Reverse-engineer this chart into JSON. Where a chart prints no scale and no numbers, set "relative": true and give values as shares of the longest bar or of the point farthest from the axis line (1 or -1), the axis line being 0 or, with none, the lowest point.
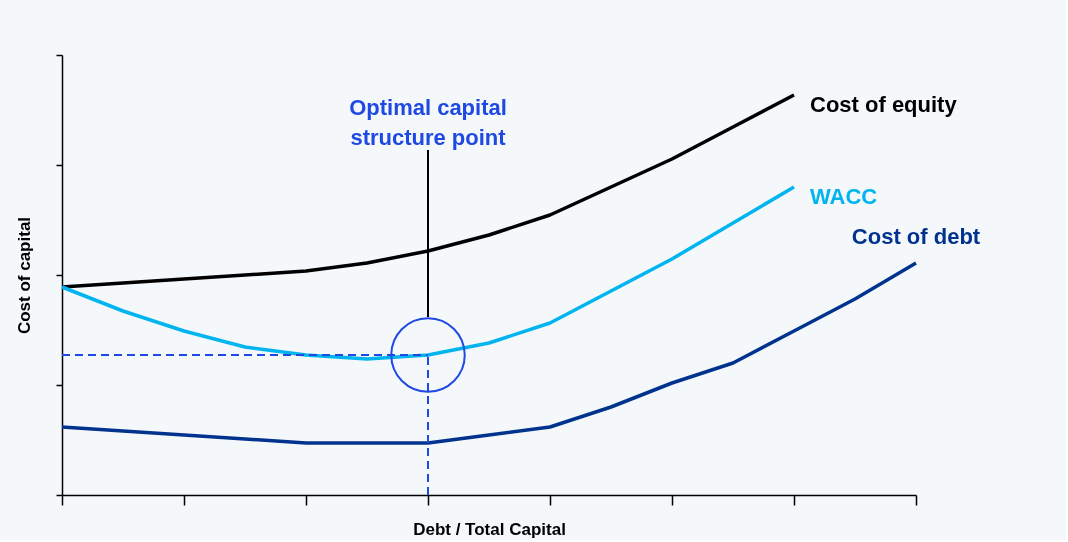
{
  "chart_data": {
    "type": "line",
    "relative": true,
    "xlabel": "Debt / Total Capital",
    "ylabel": "Cost of capital",
    "categories": [
      null,
      null,
      null,
      null,
      null,
      null,
      null,
      null,
      null,
      null,
      null,
      null,
      null,
      null,
      null
    ],
    "grid": false,
    "legend": false,
    "marker": "none",
    "line_style": "solid",
    "series": [
      {
        "name": "Cost of equity",
        "color": "#000000",
        "values": [
          0.52,
          0.53,
          0.54,
          0.55,
          0.56,
          0.58,
          0.61,
          0.65,
          0.7,
          0.77,
          0.84,
          0.92,
          1.0,
          null,
          null
        ]
      },
      {
        "name": "WACC",
        "color": "#00b5ef",
        "values": [
          0.52,
          0.46,
          0.41,
          0.37,
          0.35,
          0.34,
          0.35,
          0.38,
          0.43,
          0.51,
          0.59,
          0.68,
          0.77,
          null,
          null
        ]
      },
      {
        "name": "Cost of debt",
        "color": "#00338d",
        "values": [
          0.17,
          0.16,
          0.15,
          0.14,
          0.13,
          0.13,
          0.13,
          0.15,
          0.17,
          0.22,
          0.28,
          0.33,
          0.41,
          0.49,
          0.58
        ]
      }
    ],
    "ref_lines": [
      {
        "axis": "y",
        "value": 0.35,
        "color": "#1e49e2",
        "line_style": "dashed"
      }
    ],
    "annotations": [
      "Optimal capital structure point"
    ]
  }
}
